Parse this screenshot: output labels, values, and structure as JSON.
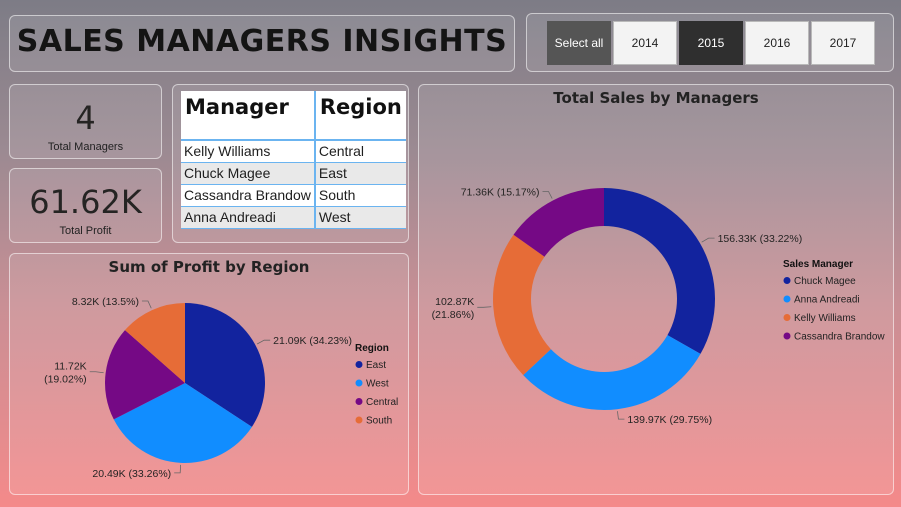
{
  "header": {
    "title": "SALES MANAGERS INSIGHTS"
  },
  "year_slicer": {
    "buttons": [
      {
        "label": "Select all",
        "state": "all"
      },
      {
        "label": "2014",
        "state": "off"
      },
      {
        "label": "2015",
        "state": "selected"
      },
      {
        "label": "2016",
        "state": "off"
      },
      {
        "label": "2017",
        "state": "off"
      }
    ]
  },
  "kpis": {
    "total_managers": {
      "value": "4",
      "label": "Total Managers"
    },
    "total_profit": {
      "value": "61.62K",
      "label": "Total Profit"
    }
  },
  "manager_table": {
    "headers": [
      "Manager",
      "Region"
    ],
    "rows": [
      [
        "Kelly Williams",
        "Central"
      ],
      [
        "Chuck Magee",
        "East"
      ],
      [
        "Cassandra Brandow",
        "South"
      ],
      [
        "Anna Andreadi",
        "West"
      ]
    ]
  },
  "colors": {
    "east": "#12239e",
    "west": "#118dff",
    "central": "#750985",
    "south": "#e66c37"
  },
  "chart_data": [
    {
      "type": "pie",
      "title": "Sum of Profit by Region",
      "legend_title": "Region",
      "legend_position": "right",
      "series": [
        {
          "name": "East",
          "value": 21.09,
          "label": "21.09K (34.23%)",
          "color": "#12239e"
        },
        {
          "name": "West",
          "value": 20.49,
          "label": "20.49K (33.26%)",
          "color": "#118dff"
        },
        {
          "name": "Central",
          "value": 11.72,
          "label": "11.72K (19.02%)",
          "color": "#750985"
        },
        {
          "name": "South",
          "value": 8.32,
          "label": "8.32K (13.5%)",
          "color": "#e66c37"
        }
      ]
    },
    {
      "type": "pie",
      "subtype": "donut",
      "title": "Total Sales by Managers",
      "legend_title": "Sales Manager",
      "legend_position": "right",
      "series": [
        {
          "name": "Chuck Magee",
          "value": 156.33,
          "label": "156.33K (33.22%)",
          "color": "#12239e"
        },
        {
          "name": "Anna Andreadi",
          "value": 139.97,
          "label": "139.97K (29.75%)",
          "color": "#118dff"
        },
        {
          "name": "Kelly Williams",
          "value": 102.87,
          "label": "102.87K (21.86%)",
          "color": "#e66c37"
        },
        {
          "name": "Cassandra Brandow",
          "value": 71.36,
          "label": "71.36K (15.17%)",
          "color": "#750985"
        }
      ]
    }
  ]
}
